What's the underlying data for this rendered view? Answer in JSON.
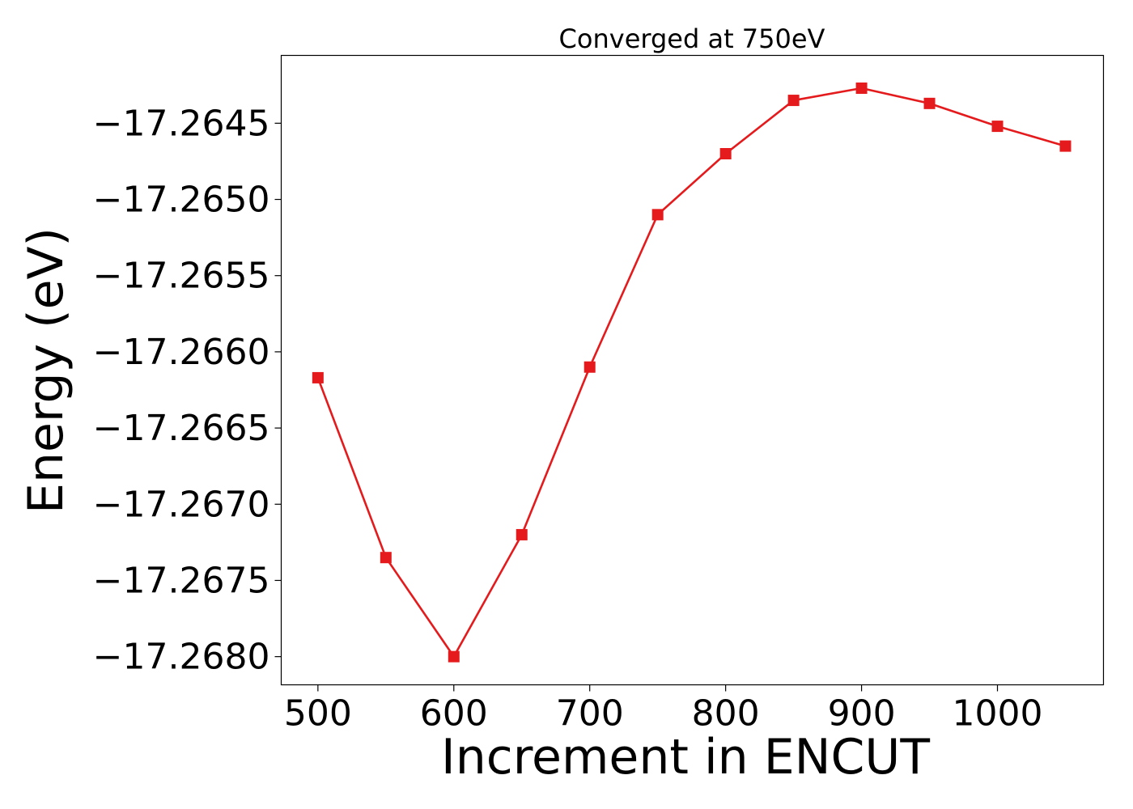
{
  "chart_data": {
    "type": "line",
    "title": "Converged at 750eV",
    "xlabel": "Increment in ENCUT",
    "ylabel": "Energy (eV)",
    "x": [
      500,
      550,
      600,
      650,
      700,
      750,
      800,
      850,
      900,
      950,
      1000,
      1050
    ],
    "series": [
      {
        "values": [
          -17.26617,
          -17.26735,
          -17.268,
          -17.2672,
          -17.2661,
          -17.2651,
          -17.2647,
          -17.26435,
          -17.26427,
          -17.26437,
          -17.26452,
          -17.26465
        ],
        "color": "#e41a1c",
        "marker": "square"
      }
    ],
    "xlim": [
      473,
      1078
    ],
    "ylim": [
      -17.268185,
      -17.264055
    ],
    "xticks": [
      500,
      600,
      700,
      800,
      900,
      1000
    ],
    "xtick_labels": [
      "500",
      "600",
      "700",
      "800",
      "900",
      "1000"
    ],
    "yticks": [
      -17.268,
      -17.2675,
      -17.267,
      -17.2665,
      -17.266,
      -17.2655,
      -17.265,
      -17.2645
    ],
    "ytick_labels": [
      "−17.2680",
      "−17.2675",
      "−17.2670",
      "−17.2665",
      "−17.2660",
      "−17.2655",
      "−17.2650",
      "−17.2645"
    ],
    "grid": false,
    "legend": "none"
  }
}
